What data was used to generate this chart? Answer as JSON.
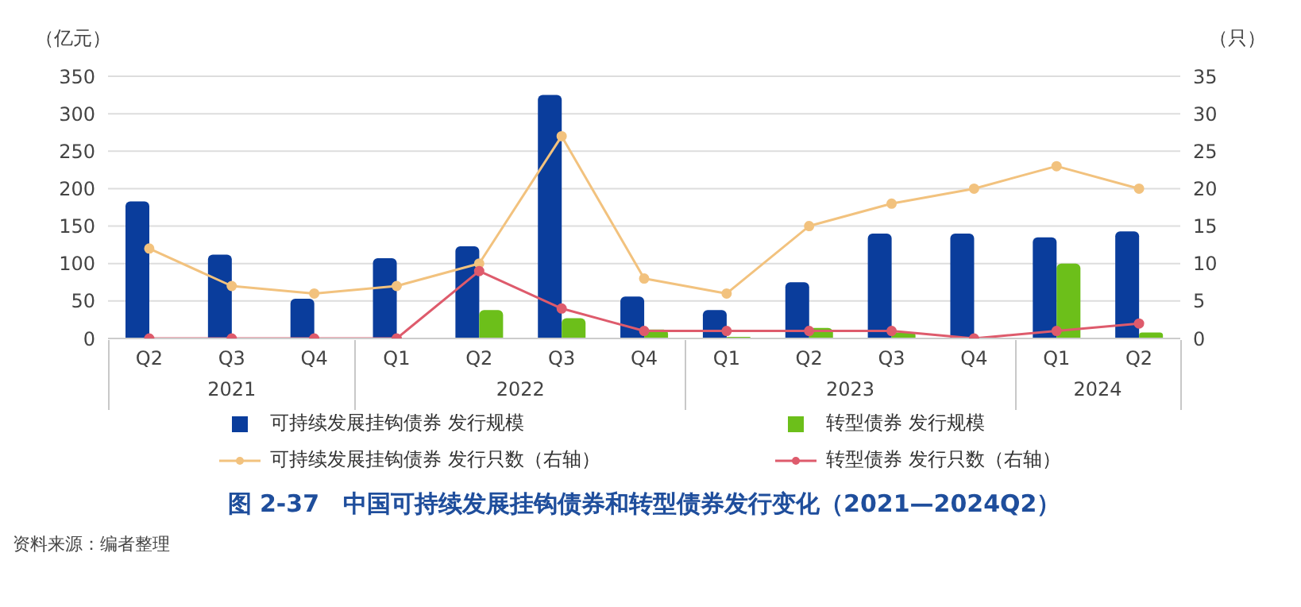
{
  "chart_data": {
    "type": "bar",
    "title": "图 2-37　中国可持续发展挂钩债券和转型债券发行变化（2021—2024Q2）",
    "ylabel": "（亿元）",
    "y2label": "（只）",
    "categories": [
      "Q2",
      "Q3",
      "Q4",
      "Q1",
      "Q2",
      "Q3",
      "Q4",
      "Q1",
      "Q2",
      "Q3",
      "Q4",
      "Q1",
      "Q2"
    ],
    "series": [
      {
        "name": "可持续发展挂钩债券 发行规模",
        "color": "#0a3d9c",
        "values": [
          183,
          112,
          53,
          107,
          123,
          325,
          56,
          38,
          75,
          140,
          140,
          135,
          143
        ]
      },
      {
        "name": "转型债券 发行规模",
        "color": "#6cbf1a",
        "values": [
          0,
          0,
          0,
          0,
          38,
          27,
          12,
          2,
          14,
          8,
          0,
          100,
          8
        ]
      },
      {
        "name": "可持续发展挂钩债券 发行只数（右轴）",
        "type": "line",
        "axis": "y2",
        "color": "#f2c27e",
        "values": [
          12,
          7,
          6,
          7,
          10,
          27,
          8,
          6,
          15,
          18,
          20,
          23,
          20
        ]
      },
      {
        "name": "转型债券 发行只数（右轴）",
        "type": "line",
        "axis": "y2",
        "color": "#de5b6c",
        "values": [
          0,
          0,
          0,
          0,
          9,
          4,
          1,
          1,
          1,
          1,
          0,
          1,
          2
        ]
      }
    ],
    "ylim": [
      0,
      350
    ],
    "yticks": [
      0,
      50,
      100,
      150,
      200,
      250,
      300,
      350
    ],
    "y2lim": [
      0,
      35
    ],
    "y2ticks": [
      0,
      5,
      10,
      15,
      20,
      25,
      30,
      35
    ],
    "grid": "y",
    "legend": "bottom",
    "marker": "circle",
    "line_style": "solid",
    "annotations": [
      "2021",
      "2022",
      "2023",
      "2024",
      "资料来源：编者整理"
    ]
  }
}
